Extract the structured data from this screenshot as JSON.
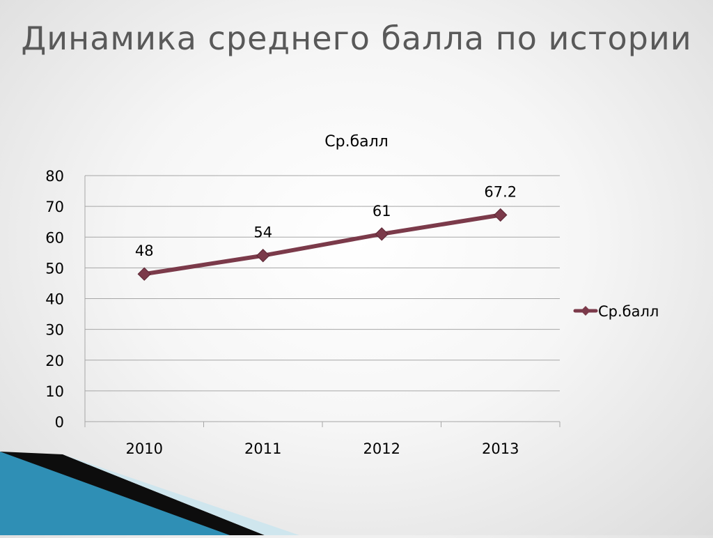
{
  "slide": {
    "title": "Динамика среднего балла по истории"
  },
  "chart_data": {
    "type": "line",
    "title": "Ср.балл",
    "categories": [
      "2010",
      "2011",
      "2012",
      "2013"
    ],
    "series": [
      {
        "name": "Ср.балл",
        "values": [
          48,
          54,
          61,
          67.2
        ],
        "color": "#7b3a4a"
      }
    ],
    "ylim": [
      0,
      80
    ],
    "yticks": [
      0,
      10,
      20,
      30,
      40,
      50,
      60,
      70,
      80
    ],
    "xlabel": "",
    "ylabel": "",
    "grid": true,
    "legend": "right",
    "data_labels": [
      "48",
      "54",
      "61",
      "67.2"
    ]
  },
  "colors": {
    "series": "#7b3a4a",
    "title": "#595959",
    "grid": "#a6a6a6",
    "accent_blue": "#2f8fb5",
    "accent_dark": "#0d0d0d"
  }
}
